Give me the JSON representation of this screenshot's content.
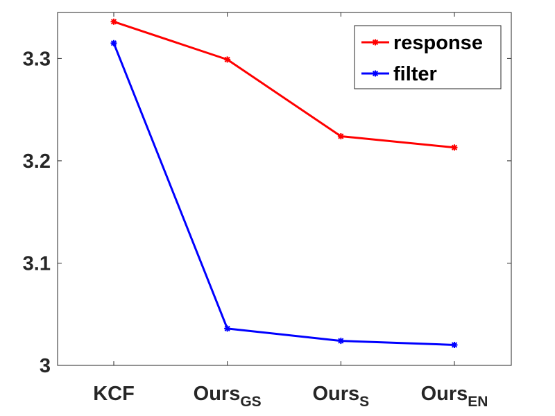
{
  "chart_data": {
    "type": "line",
    "categories": [
      {
        "main": "KCF",
        "sub": ""
      },
      {
        "main": "Ours",
        "sub": "GS"
      },
      {
        "main": "Ours",
        "sub": "S"
      },
      {
        "main": "Ours",
        "sub": "EN"
      }
    ],
    "series": [
      {
        "name": "response",
        "color": "#ff0000",
        "values": [
          3.336,
          3.299,
          3.224,
          3.213
        ]
      },
      {
        "name": "filter",
        "color": "#0000ff",
        "values": [
          3.315,
          3.036,
          3.024,
          3.02
        ]
      }
    ],
    "ylim": [
      3.0,
      3.345
    ],
    "yticks": [
      3,
      3.1,
      3.2,
      3.3
    ],
    "ytick_labels": [
      "3",
      "3.1",
      "3.2",
      "3.3"
    ],
    "xlabel": "",
    "ylabel": "",
    "title": "",
    "grid": false,
    "legend_position": "top-right",
    "marker": "asterisk"
  }
}
